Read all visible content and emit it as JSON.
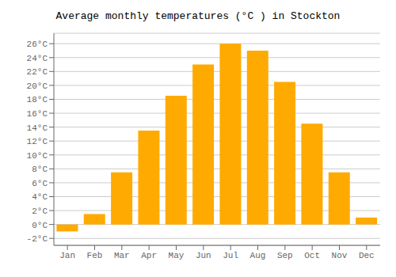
{
  "chart_data": {
    "type": "bar",
    "title": "Average monthly temperatures (°C ) in Stockton",
    "categories": [
      "Jan",
      "Feb",
      "Mar",
      "Apr",
      "May",
      "Jun",
      "Jul",
      "Aug",
      "Sep",
      "Oct",
      "Nov",
      "Dec"
    ],
    "values": [
      -1.0,
      1.5,
      7.5,
      13.5,
      18.5,
      23.0,
      26.0,
      25.0,
      20.5,
      14.5,
      7.5,
      1.0
    ],
    "color": "#FFAA00",
    "ylim": [
      -3,
      27.5
    ],
    "yticks": [
      {
        "value": -2,
        "label": "-2°C"
      },
      {
        "value": 0,
        "label": "0°C"
      },
      {
        "value": 2,
        "label": "2°C"
      },
      {
        "value": 4,
        "label": "4°C"
      },
      {
        "value": 6,
        "label": "6°C"
      },
      {
        "value": 8,
        "label": "8°C"
      },
      {
        "value": 10,
        "label": "10°C"
      },
      {
        "value": 12,
        "label": "12°C"
      },
      {
        "value": 14,
        "label": "14°C"
      },
      {
        "value": 16,
        "label": "16°C"
      },
      {
        "value": 18,
        "label": "18°C"
      },
      {
        "value": 20,
        "label": "20°C"
      },
      {
        "value": 22,
        "label": "22°C"
      },
      {
        "value": 24,
        "label": "24°C"
      },
      {
        "value": 26,
        "label": "26°C"
      }
    ],
    "grid": true
  }
}
